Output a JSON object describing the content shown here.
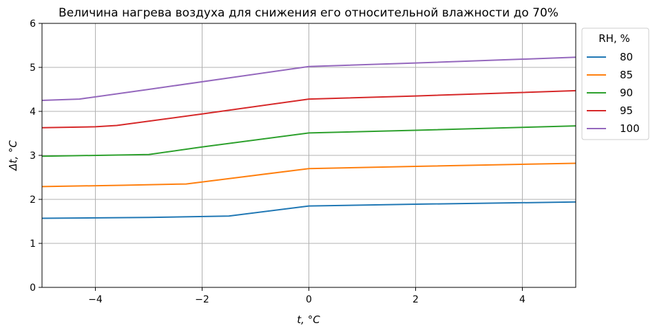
{
  "chart_data": {
    "type": "line",
    "title": "Величина нагрева воздуха для снижения его относительной влажности до 70%",
    "xlabel": "t, °C",
    "ylabel": "Δt, °C",
    "xlim": [
      -5,
      5
    ],
    "ylim": [
      0,
      6
    ],
    "xticks": [
      -4,
      -2,
      0,
      2,
      4
    ],
    "xtick_labels": [
      "−4",
      "−2",
      "0",
      "2",
      "4"
    ],
    "yticks": [
      0,
      1,
      2,
      3,
      4,
      5,
      6
    ],
    "ytick_labels": [
      "0",
      "1",
      "2",
      "3",
      "4",
      "5",
      "6"
    ],
    "grid": true,
    "legend": {
      "title": "RH, %",
      "placement": "outside-right-top"
    },
    "series": [
      {
        "name": "80",
        "color": "#1f77b4",
        "points": [
          [
            -5,
            1.57
          ],
          [
            -3,
            1.59
          ],
          [
            -1.5,
            1.62
          ],
          [
            0,
            1.85
          ],
          [
            2,
            1.89
          ],
          [
            5,
            1.94
          ]
        ]
      },
      {
        "name": "85",
        "color": "#ff7f0e",
        "points": [
          [
            -5,
            2.29
          ],
          [
            -3.5,
            2.32
          ],
          [
            -2.3,
            2.35
          ],
          [
            0,
            2.7
          ],
          [
            2,
            2.75
          ],
          [
            5,
            2.82
          ]
        ]
      },
      {
        "name": "90",
        "color": "#2ca02c",
        "points": [
          [
            -5,
            2.98
          ],
          [
            -3,
            3.02
          ],
          [
            -2,
            3.19
          ],
          [
            0,
            3.51
          ],
          [
            2,
            3.57
          ],
          [
            5,
            3.67
          ]
        ]
      },
      {
        "name": "95",
        "color": "#d62728",
        "points": [
          [
            -5,
            3.63
          ],
          [
            -4,
            3.65
          ],
          [
            -3.6,
            3.68
          ],
          [
            -2,
            3.94
          ],
          [
            0,
            4.28
          ],
          [
            2,
            4.35
          ],
          [
            5,
            4.47
          ]
        ]
      },
      {
        "name": "100",
        "color": "#9467bd",
        "points": [
          [
            -5,
            4.25
          ],
          [
            -4.3,
            4.28
          ],
          [
            -3,
            4.5
          ],
          [
            0,
            5.02
          ],
          [
            2,
            5.1
          ],
          [
            5,
            5.23
          ]
        ]
      }
    ]
  }
}
